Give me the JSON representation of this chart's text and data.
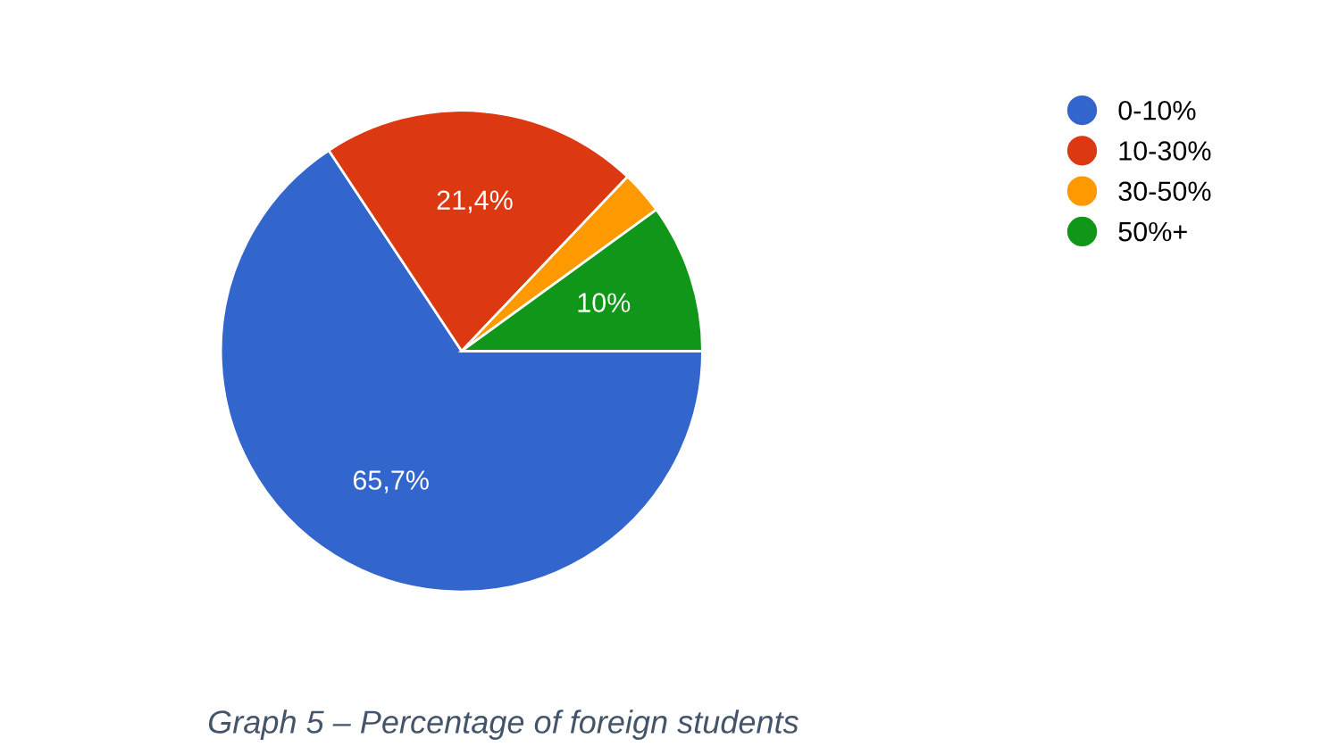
{
  "chart_data": {
    "type": "pie",
    "categories": [
      "0-10%",
      "10-30%",
      "30-50%",
      "50%+"
    ],
    "values": [
      65.7,
      21.4,
      2.9,
      10
    ],
    "colors": [
      "#3366cc",
      "#dc3912",
      "#ff9900",
      "#109618"
    ],
    "value_labels": [
      "65,7%",
      "21,4%",
      null,
      "10%"
    ],
    "legend": "top right",
    "annotations": [
      "Graph 5 – Percentage of foreign students"
    ]
  }
}
